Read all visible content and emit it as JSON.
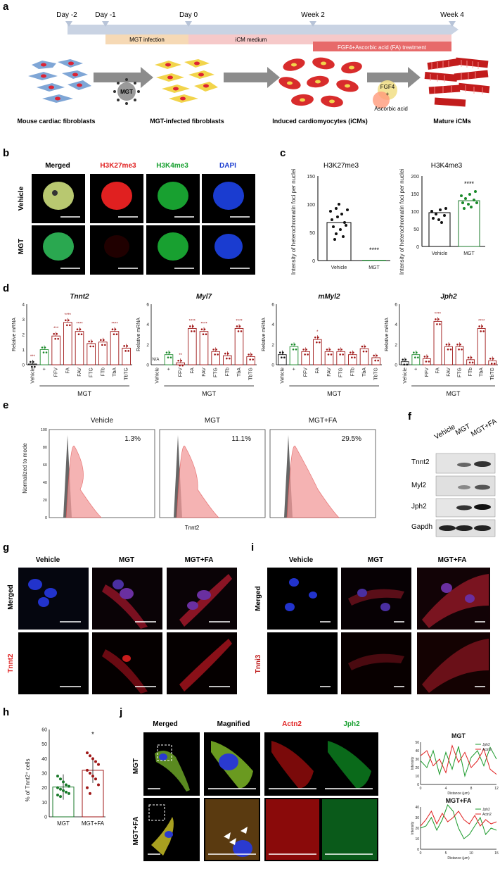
{
  "panel_a": {
    "letter": "a",
    "days": [
      "Day -2",
      "Day -1",
      "Day 0",
      "Week 2",
      "Week 4"
    ],
    "bars": [
      "MGT infection",
      "iCM medium",
      "FGF4+Ascorbic acid (FA) treatment"
    ],
    "stages": [
      "Mouse cardiac fibroblasts",
      "MGT-infected fibroblasts",
      "Induced cardiomyocytes (iCMs)",
      "Mature iCMs"
    ],
    "mgt_ball": "MGT",
    "fgf4": "FGF4",
    "plus": "+",
    "ascorbic": "Ascorbic acid",
    "colors": {
      "timeline": "#c9d3e3",
      "infection": "#f6d9b5",
      "medium": "#f6c9c9",
      "fa_bar": "#e76a6a"
    }
  },
  "panel_b": {
    "letter": "b",
    "cols": [
      "Merged",
      "H3K27me3",
      "H3K4me3",
      "DAPI"
    ],
    "rows": [
      "Vehicle",
      "MGT"
    ],
    "colors": {
      "red": "#e02020",
      "green": "#18a030",
      "blue": "#1a3cd0"
    }
  },
  "panel_c": {
    "letter": "c",
    "charts": [
      {
        "title": "H3K27me3",
        "ylabel": "Intensity of heterochromatin foci per nuclei",
        "ticks": [
          "0",
          "50",
          "100",
          "150"
        ],
        "cats": [
          "Vehicle",
          "MGT"
        ],
        "sig": "****"
      },
      {
        "title": "H3K4me3",
        "ylabel": "Intensity of heterochromatin foci per nuclei",
        "ticks": [
          "0",
          "50",
          "100",
          "150",
          "200"
        ],
        "cats": [
          "Vehicle",
          "MGT"
        ],
        "sig": "****"
      }
    ]
  },
  "panel_d": {
    "letter": "d",
    "ylabel": "Relative mRNA",
    "group_label": "MGT",
    "categories": [
      "Vehicle",
      "+",
      "FFV",
      "FA",
      "FAV",
      "FTG",
      "FTb",
      "TbA",
      "TbTG"
    ],
    "na": "N/A",
    "genes": [
      {
        "title": "Tnnt2",
        "ticks": [
          "0",
          "1",
          "2",
          "3",
          "4"
        ],
        "ymax": 4,
        "values": [
          0.05,
          1.0,
          1.9,
          2.8,
          2.2,
          1.4,
          1.5,
          2.2,
          1.1
        ],
        "sig": [
          "***",
          "",
          "***",
          "****",
          "****",
          "",
          "",
          "****",
          ""
        ]
      },
      {
        "title": "Myl7",
        "ticks": [
          "0",
          "2",
          "4",
          "6"
        ],
        "ymax": 6,
        "values": [
          0,
          1.0,
          0.2,
          3.6,
          3.3,
          1.3,
          0.9,
          3.6,
          0.8
        ],
        "sig": [
          "",
          "",
          "**",
          "****",
          "****",
          "",
          "",
          "****",
          ""
        ]
      },
      {
        "title": "mMyl2",
        "ticks": [
          "0",
          "2",
          "4",
          "6"
        ],
        "ymax": 6,
        "values": [
          1.0,
          1.8,
          1.3,
          2.5,
          1.3,
          1.3,
          1.0,
          1.6,
          0.7
        ],
        "sig": [
          "",
          "",
          "",
          "*",
          "",
          "",
          "",
          "",
          ""
        ]
      },
      {
        "title": "Jph2",
        "ticks": [
          "0",
          "2",
          "4",
          "6"
        ],
        "ymax": 6,
        "values": [
          0.3,
          1.0,
          0.6,
          4.3,
          1.8,
          1.8,
          0.5,
          3.6,
          0.4
        ],
        "sig": [
          "",
          "",
          "",
          "****",
          "",
          "",
          "",
          "****",
          ""
        ]
      }
    ]
  },
  "panel_e": {
    "letter": "e",
    "ylabel": "Normalized to mode",
    "xlabel": "Tnnt2",
    "plots": [
      {
        "title": "Vehicle",
        "pct": "1.3%"
      },
      {
        "title": "MGT",
        "pct": "11.1%"
      },
      {
        "title": "MGT+FA",
        "pct": "29.5%"
      }
    ],
    "yticks": [
      "0",
      "20",
      "40",
      "60",
      "80",
      "100"
    ]
  },
  "panel_f": {
    "letter": "f",
    "cols": [
      "Vehicle",
      "MGT",
      "MGT+FA"
    ],
    "rows": [
      "Tnnt2",
      "Myl2",
      "Jph2",
      "Gapdh"
    ]
  },
  "panel_g": {
    "letter": "g",
    "cols": [
      "Vehicle",
      "MGT",
      "MGT+FA"
    ],
    "rows": [
      "Merged",
      "Tnnt2"
    ]
  },
  "panel_i": {
    "letter": "i",
    "cols": [
      "Vehicle",
      "MGT",
      "MGT+FA"
    ],
    "rows": [
      "Merged",
      "Tnni3"
    ]
  },
  "panel_h": {
    "letter": "h",
    "ylabel": "% of Tnnt2⁺ cells",
    "ticks": [
      "0",
      "10",
      "20",
      "30",
      "40",
      "50",
      "60"
    ],
    "chart_data": {
      "type": "bar",
      "categories": [
        "MGT",
        "MGT+FA"
      ],
      "values": [
        20.5,
        32.0
      ],
      "ylabel": "% of Tnnt2⁺ cells",
      "ylim": [
        0,
        60
      ]
    },
    "sig": "*"
  },
  "panel_j": {
    "letter": "j",
    "cols": [
      "Merged",
      "Magnified",
      "Actn2",
      "Jph2"
    ],
    "rows": [
      "MGT",
      "MGT+FA"
    ],
    "plots": [
      {
        "title": "MGT",
        "xticks": [
          "0",
          "4",
          "8",
          "12"
        ],
        "yticks": [
          "0",
          "10",
          "20",
          "30",
          "40",
          "50"
        ],
        "xlabel": "Distance (µm)",
        "ylabel": "Intensity",
        "legend": [
          "Jph2",
          "Actn2"
        ]
      },
      {
        "title": "MGT+FA",
        "xticks": [
          "0",
          "5",
          "10",
          "15"
        ],
        "yticks": [
          "0",
          "10",
          "20",
          "30",
          "40"
        ],
        "xlabel": "Distance (µm)",
        "ylabel": "Intensity",
        "legend": [
          "Jph2",
          "Actn2"
        ]
      }
    ]
  }
}
